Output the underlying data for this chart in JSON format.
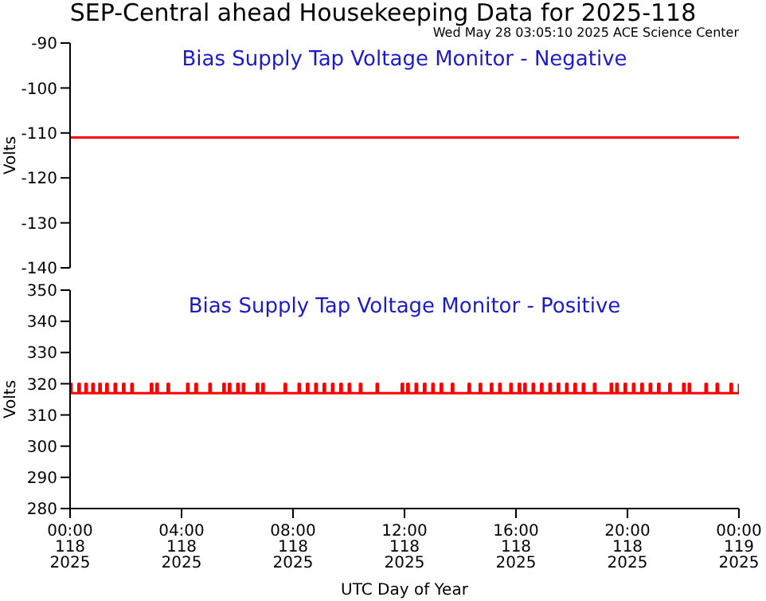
{
  "chart_data": [
    {
      "type": "line",
      "title": "SEP-Central ahead Housekeeping Data for 2025-118",
      "subtitle": "Bias Supply Tap Voltage Monitor - Negative",
      "annotations": [
        "Wed May 28 03:05:10 2025 ACE Science Center"
      ],
      "ylabel": "Volts",
      "xlim": [
        "2025-04-28T00:00",
        "2025-04-29T00:00"
      ],
      "xticks": [
        {
          "value": "2025-04-28T00:00",
          "label": null
        },
        {
          "value": "2025-04-28T04:00",
          "label": null
        },
        {
          "value": "2025-04-28T08:00",
          "label": null
        },
        {
          "value": "2025-04-28T12:00",
          "label": null
        },
        {
          "value": "2025-04-28T16:00",
          "label": null
        },
        {
          "value": "2025-04-28T20:00",
          "label": null
        },
        {
          "value": "2025-04-29T00:00",
          "label": null
        }
      ],
      "ylim": [
        -140,
        -90
      ],
      "yticks": [
        -140,
        -130,
        -120,
        -110,
        -100,
        -90
      ],
      "tick_labels": "y",
      "series": [
        {
          "color": "#ff0000",
          "x": [
            "2025-04-28T00:00",
            "2025-04-29T00:00"
          ],
          "values": [
            -111,
            -111
          ]
        }
      ]
    },
    {
      "type": "step",
      "subtitle": "Bias Supply Tap Voltage Monitor - Positive",
      "xlabel": "UTC Day of Year",
      "ylabel": "Volts",
      "xlim": [
        "2025-04-28T00:00",
        "2025-04-29T00:00"
      ],
      "xticks": [
        {
          "value": "2025-04-28T00:00",
          "label": "00:00\n118\n2025"
        },
        {
          "value": "2025-04-28T04:00",
          "label": "04:00\n118\n2025"
        },
        {
          "value": "2025-04-28T08:00",
          "label": "08:00\n118\n2025"
        },
        {
          "value": "2025-04-28T12:00",
          "label": "12:00\n118\n2025"
        },
        {
          "value": "2025-04-28T16:00",
          "label": "16:00\n118\n2025"
        },
        {
          "value": "2025-04-28T20:00",
          "label": "20:00\n118\n2025"
        },
        {
          "value": "2025-04-29T00:00",
          "label": "00:00\n119\n2025"
        }
      ],
      "ylim": [
        280,
        350
      ],
      "yticks": [
        280,
        290,
        300,
        310,
        320,
        330,
        340,
        350
      ],
      "series": [
        {
          "color": "#ff0000",
          "x": [
            "2025-04-28T00:00",
            "2025-04-28T00:03",
            "2025-04-28T00:18",
            "2025-04-28T00:21",
            "2025-04-28T00:33",
            "2025-04-28T00:36",
            "2025-04-28T00:48",
            "2025-04-28T00:51",
            "2025-04-28T01:03",
            "2025-04-28T01:06",
            "2025-04-28T01:18",
            "2025-04-28T01:21",
            "2025-04-28T01:36",
            "2025-04-28T01:39",
            "2025-04-28T01:54",
            "2025-04-28T01:57",
            "2025-04-28T02:12",
            "2025-04-28T02:15",
            "2025-04-28T02:54",
            "2025-04-28T02:57",
            "2025-04-28T03:06",
            "2025-04-28T03:09",
            "2025-04-28T03:30",
            "2025-04-28T03:33",
            "2025-04-28T04:12",
            "2025-04-28T04:15",
            "2025-04-28T04:30",
            "2025-04-28T04:33",
            "2025-04-28T05:00",
            "2025-04-28T05:03",
            "2025-04-28T05:30",
            "2025-04-28T05:33",
            "2025-04-28T05:42",
            "2025-04-28T05:45",
            "2025-04-28T06:00",
            "2025-04-28T06:03",
            "2025-04-28T06:12",
            "2025-04-28T06:15",
            "2025-04-28T06:42",
            "2025-04-28T06:45",
            "2025-04-28T06:54",
            "2025-04-28T06:57",
            "2025-04-28T07:42",
            "2025-04-28T07:45",
            "2025-04-28T08:12",
            "2025-04-28T08:15",
            "2025-04-28T08:30",
            "2025-04-28T08:33",
            "2025-04-28T08:48",
            "2025-04-28T08:51",
            "2025-04-28T09:06",
            "2025-04-28T09:09",
            "2025-04-28T09:24",
            "2025-04-28T09:27",
            "2025-04-28T09:42",
            "2025-04-28T09:45",
            "2025-04-28T10:00",
            "2025-04-28T10:03",
            "2025-04-28T10:24",
            "2025-04-28T10:27",
            "2025-04-28T11:00",
            "2025-04-28T11:03",
            "2025-04-28T11:54",
            "2025-04-28T11:57",
            "2025-04-28T12:06",
            "2025-04-28T12:09",
            "2025-04-28T12:24",
            "2025-04-28T12:27",
            "2025-04-28T12:42",
            "2025-04-28T12:45",
            "2025-04-28T13:00",
            "2025-04-28T13:03",
            "2025-04-28T13:18",
            "2025-04-28T13:21",
            "2025-04-28T13:42",
            "2025-04-28T13:45",
            "2025-04-28T14:18",
            "2025-04-28T14:21",
            "2025-04-28T14:42",
            "2025-04-28T14:45",
            "2025-04-28T15:06",
            "2025-04-28T15:09",
            "2025-04-28T15:24",
            "2025-04-28T15:27",
            "2025-04-28T15:48",
            "2025-04-28T15:51",
            "2025-04-28T16:06",
            "2025-04-28T16:09",
            "2025-04-28T16:18",
            "2025-04-28T16:21",
            "2025-04-28T16:36",
            "2025-04-28T16:39",
            "2025-04-28T16:54",
            "2025-04-28T16:57",
            "2025-04-28T17:12",
            "2025-04-28T17:15",
            "2025-04-28T17:30",
            "2025-04-28T17:33",
            "2025-04-28T17:48",
            "2025-04-28T17:51",
            "2025-04-28T18:06",
            "2025-04-28T18:09",
            "2025-04-28T18:24",
            "2025-04-28T18:27",
            "2025-04-28T18:48",
            "2025-04-28T18:51",
            "2025-04-28T19:24",
            "2025-04-28T19:27",
            "2025-04-28T19:36",
            "2025-04-28T19:39",
            "2025-04-28T19:54",
            "2025-04-28T19:57",
            "2025-04-28T20:12",
            "2025-04-28T20:15",
            "2025-04-28T20:30",
            "2025-04-28T20:33",
            "2025-04-28T20:48",
            "2025-04-28T20:51",
            "2025-04-28T21:06",
            "2025-04-28T21:09",
            "2025-04-28T21:30",
            "2025-04-28T21:33",
            "2025-04-28T22:00",
            "2025-04-28T22:03",
            "2025-04-28T22:12",
            "2025-04-28T22:15",
            "2025-04-28T22:48",
            "2025-04-28T22:51",
            "2025-04-28T23:12",
            "2025-04-28T23:15",
            "2025-04-28T23:42",
            "2025-04-28T23:45",
            "2025-04-29T00:00"
          ],
          "values": [
            320,
            317,
            320,
            317,
            320,
            317,
            320,
            317,
            320,
            317,
            320,
            317,
            320,
            317,
            320,
            317,
            320,
            317,
            320,
            317,
            320,
            317,
            320,
            317,
            320,
            317,
            320,
            317,
            320,
            317,
            320,
            317,
            320,
            317,
            320,
            317,
            320,
            317,
            320,
            317,
            320,
            317,
            320,
            317,
            320,
            317,
            320,
            317,
            320,
            317,
            320,
            317,
            320,
            317,
            320,
            317,
            320,
            317,
            320,
            317,
            320,
            317,
            320,
            317,
            320,
            317,
            320,
            317,
            320,
            317,
            320,
            317,
            320,
            317,
            320,
            317,
            320,
            317,
            320,
            317,
            320,
            317,
            320,
            317,
            320,
            317,
            320,
            317,
            320,
            317,
            320,
            317,
            320,
            317,
            320,
            317,
            320,
            317,
            320,
            317,
            320,
            317,
            320,
            317,
            320,
            317,
            320,
            317,
            320,
            317,
            320,
            317,
            320,
            317,
            320,
            317,
            320,
            317,
            320,
            317,
            320,
            317,
            320,
            317,
            320,
            317,
            320,
            317,
            320,
            317,
            320,
            317,
            320
          ]
        }
      ]
    }
  ]
}
